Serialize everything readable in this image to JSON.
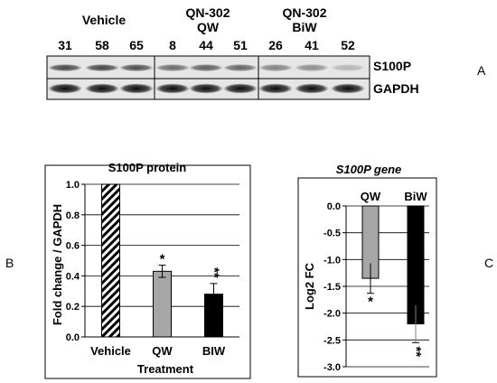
{
  "panel_a": {
    "letter": "A",
    "groups": [
      {
        "name": "Vehicle",
        "sub": "",
        "lanes": [
          "31",
          "58",
          "65"
        ]
      },
      {
        "name": "QN-302",
        "sub": "QW",
        "lanes": [
          "8",
          "44",
          "51"
        ]
      },
      {
        "name": "QN-302",
        "sub": "BiW",
        "lanes": [
          "26",
          "41",
          "52"
        ]
      }
    ],
    "bands": [
      {
        "label": "S100P",
        "intensity": [
          0.7,
          0.72,
          0.68,
          0.55,
          0.6,
          0.58,
          0.45,
          0.4,
          0.22
        ]
      },
      {
        "label": "GAPDH",
        "intensity": [
          0.95,
          0.95,
          0.95,
          0.95,
          0.95,
          0.95,
          0.95,
          0.95,
          0.95
        ]
      }
    ]
  },
  "panel_b_letter": "B",
  "panel_c_letter": "C",
  "chart_data": [
    {
      "type": "bar",
      "title": "S100P protein",
      "xlabel": "Treatment",
      "ylabel": "Fold change / GAPDH",
      "categories": [
        "Vehicle",
        "QW",
        "BIW"
      ],
      "values": [
        1.0,
        0.43,
        0.28
      ],
      "errors": [
        0,
        0.04,
        0.07
      ],
      "significance": [
        "",
        "*",
        "**"
      ],
      "fills": [
        "hatched",
        "#a6a6a6",
        "#000000"
      ],
      "ylim": [
        0,
        1.0
      ],
      "yticks": [
        "0.0",
        "0.2",
        "0.4",
        "0.6",
        "0.8",
        "1.0"
      ],
      "grid": true
    },
    {
      "type": "bar",
      "title": "S100P gene",
      "xlabel": "",
      "ylabel": "Log2 FC",
      "categories": [
        "QW",
        "BiW"
      ],
      "values": [
        -1.35,
        -2.2
      ],
      "errors": [
        0.28,
        0.35
      ],
      "significance": [
        "*",
        "**"
      ],
      "fills": [
        "#a6a6a6",
        "#000000"
      ],
      "ylim": [
        -3.0,
        0.0
      ],
      "yticks": [
        "0.0",
        "-0.5",
        "-1.0",
        "-1.5",
        "-2.0",
        "-2.5",
        "-3.0"
      ],
      "grid": true
    }
  ]
}
